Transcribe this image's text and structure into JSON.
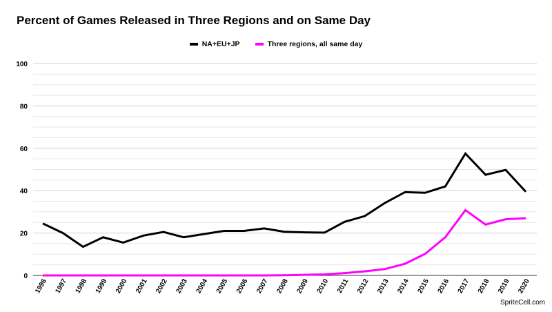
{
  "chart_data": {
    "type": "line",
    "title": "Percent of Games Released in Three Regions and on Same Day",
    "xlabel": "",
    "ylabel": "",
    "x": [
      "1996",
      "1997",
      "1998",
      "1999",
      "2000",
      "2001",
      "2002",
      "2003",
      "2004",
      "2005",
      "2006",
      "2007",
      "2008",
      "2009",
      "2010",
      "2011",
      "2012",
      "2013",
      "2014",
      "2015",
      "2016",
      "2017",
      "2018",
      "2019",
      "2020"
    ],
    "ylim": [
      0,
      100
    ],
    "yticks": [
      0,
      20,
      40,
      60,
      80,
      100
    ],
    "grid": true,
    "legend_position": "top",
    "series": [
      {
        "name": "NA+EU+JP",
        "color": "#000000",
        "values": [
          24.5,
          20,
          13.5,
          18,
          15.5,
          18.8,
          20.5,
          18,
          19.5,
          21,
          21,
          22.2,
          20.6,
          20.3,
          20.2,
          25.3,
          28,
          34.2,
          39.3,
          39,
          42,
          57.5,
          47.5,
          49.8,
          39.5
        ]
      },
      {
        "name": "Three regions, all same day",
        "color": "#ff00ff",
        "values": [
          0,
          0,
          0,
          0,
          0,
          0,
          0,
          0,
          0,
          0,
          0,
          0,
          0.1,
          0.3,
          0.5,
          1.1,
          1.9,
          3,
          5.5,
          10.2,
          18,
          30.8,
          24,
          26.5,
          27
        ]
      }
    ]
  },
  "watermark": "SpriteCell.com"
}
